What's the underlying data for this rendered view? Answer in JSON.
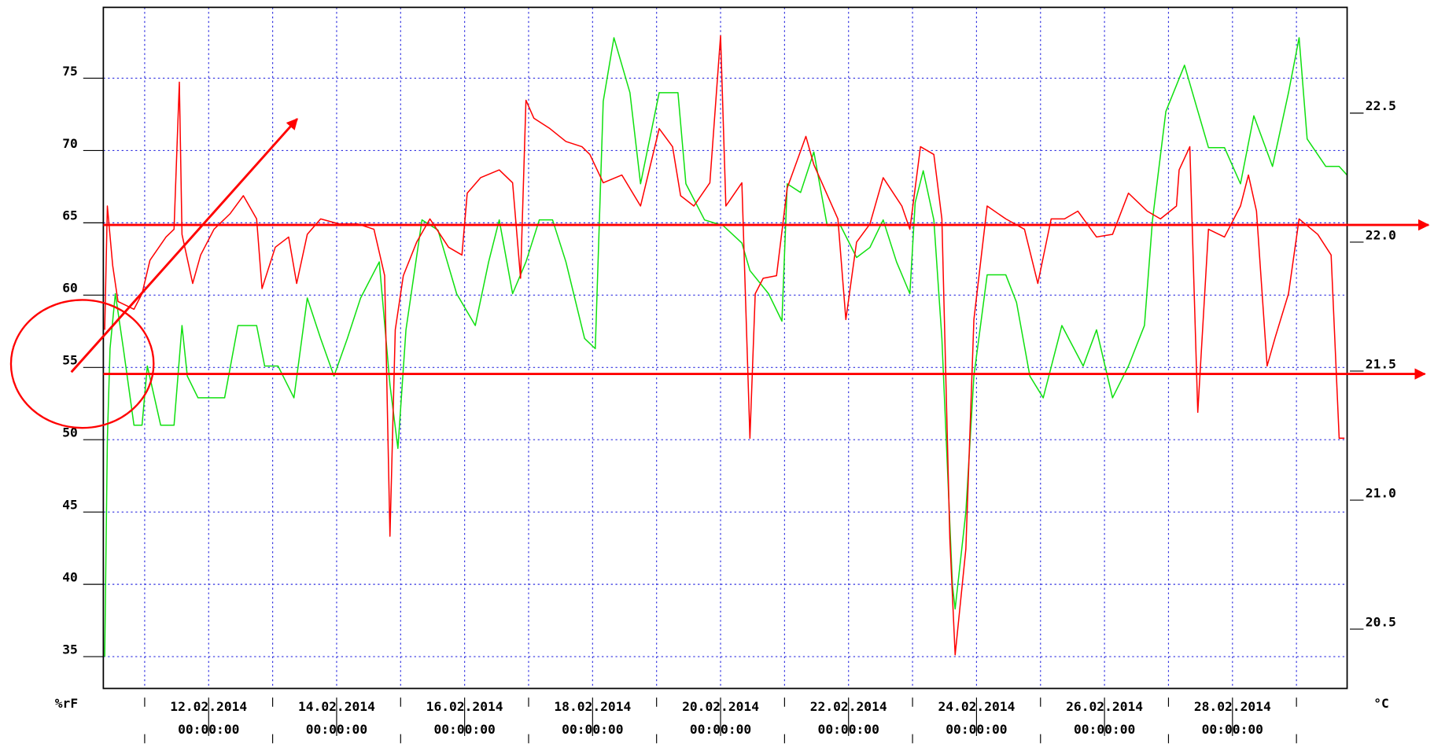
{
  "chart_data": {
    "type": "line",
    "ylabel": "%rF",
    "y2label": "°C",
    "grid": true,
    "xlim": [
      "2014-02-10T08:30",
      "2014-03-01T19:00"
    ],
    "ylim": [
      32.8,
      79.9
    ],
    "yticks": [
      35,
      40,
      45,
      50,
      55,
      60,
      65,
      70,
      75
    ],
    "y2lim": [
      20.27,
      22.91
    ],
    "y2ticks": [
      20.5,
      {
        "value": 21,
        "label": "21.0"
      },
      21.5,
      {
        "value": 22,
        "label": "22.0"
      },
      22.5
    ],
    "xticks": [
      {
        "value": "2014-02-12T00:00",
        "label": "12.02.2014 00:00:00"
      },
      {
        "value": "2014-02-14T00:00",
        "label": "14.02.2014 00:00:00"
      },
      {
        "value": "2014-02-16T00:00",
        "label": "16.02.2014 00:00:00"
      },
      {
        "value": "2014-02-18T00:00",
        "label": "18.02.2014 00:00:00"
      },
      {
        "value": "2014-02-20T00:00",
        "label": "20.02.2014 00:00:00"
      },
      {
        "value": "2014-02-22T00:00",
        "label": "22.02.2014 00:00:00"
      },
      {
        "value": "2014-02-24T00:00",
        "label": "24.02.2014 00:00:00"
      },
      {
        "value": "2014-02-26T00:00",
        "label": "26.02.2014 00:00:00"
      },
      {
        "value": "2014-02-28T00:00",
        "label": "28.02.2014 00:00:00"
      }
    ],
    "xminorticks": [
      "2014-02-11T00:00",
      "2014-02-13T00:00",
      "2014-02-15T00:00",
      "2014-02-17T00:00",
      "2014-02-19T00:00",
      "2014-02-21T00:00",
      "2014-02-23T00:00",
      "2014-02-25T00:00",
      "2014-02-27T00:00",
      "2014-03-01T00:00"
    ],
    "series": [
      {
        "color": "#10e010",
        "axis": "y",
        "x": [
          "2014-02-10T09:00",
          "2014-02-10T10:00",
          "2014-02-10T11:00",
          "2014-02-10T13:00",
          "2014-02-10T16:00",
          "2014-02-10T20:00",
          "2014-02-10T23:00",
          "2014-02-11T01:00",
          "2014-02-11T06:00",
          "2014-02-11T11:00",
          "2014-02-11T14:00",
          "2014-02-11T16:00",
          "2014-02-11T20:00",
          "2014-02-12T06:00",
          "2014-02-12T11:00",
          "2014-02-12T18:00",
          "2014-02-12T21:00",
          "2014-02-13T02:00",
          "2014-02-13T08:00",
          "2014-02-13T13:00",
          "2014-02-13T18:00",
          "2014-02-13T23:00",
          "2014-02-14T04:00",
          "2014-02-14T09:00",
          "2014-02-14T16:00",
          "2014-02-14T20:00",
          "2014-02-14T23:00",
          "2014-02-15T02:00",
          "2014-02-15T08:00",
          "2014-02-15T14:00",
          "2014-02-15T21:00",
          "2014-02-16T04:00",
          "2014-02-16T09:00",
          "2014-02-16T13:00",
          "2014-02-16T18:00",
          "2014-02-16T23:00",
          "2014-02-17T04:00",
          "2014-02-17T09:00",
          "2014-02-17T14:00",
          "2014-02-17T21:00",
          "2014-02-18T01:00",
          "2014-02-18T04:00",
          "2014-02-18T08:00",
          "2014-02-18T14:00",
          "2014-02-18T18:00",
          "2014-02-19T01:00",
          "2014-02-19T08:00",
          "2014-02-19T11:00",
          "2014-02-19T18:00",
          "2014-02-20T01:00",
          "2014-02-20T08:00",
          "2014-02-20T11:00",
          "2014-02-20T18:00",
          "2014-02-20T23:00",
          "2014-02-21T01:00",
          "2014-02-21T06:00",
          "2014-02-21T11:00",
          "2014-02-21T16:00",
          "2014-02-21T21:00",
          "2014-02-22T03:00",
          "2014-02-22T08:00",
          "2014-02-22T13:00",
          "2014-02-22T18:00",
          "2014-02-22T23:00",
          "2014-02-23T01:00",
          "2014-02-23T04:00",
          "2014-02-23T08:00",
          "2014-02-23T11:00",
          "2014-02-23T15:00",
          "2014-02-23T16:00",
          "2014-02-23T20:00",
          "2014-02-23T23:00",
          "2014-02-24T04:00",
          "2014-02-24T11:00",
          "2014-02-24T15:00",
          "2014-02-24T20:00",
          "2014-02-25T01:00",
          "2014-02-25T08:00",
          "2014-02-25T16:00",
          "2014-02-25T21:00",
          "2014-02-26T03:00",
          "2014-02-26T09:00",
          "2014-02-26T15:00",
          "2014-02-26T18:00",
          "2014-02-26T23:00",
          "2014-02-27T06:00",
          "2014-02-27T09:00",
          "2014-02-27T15:00",
          "2014-02-27T21:00",
          "2014-02-28T03:00",
          "2014-02-28T08:00",
          "2014-02-28T15:00",
          "2014-02-28T21:00",
          "2014-03-01T01:00",
          "2014-03-01T04:00",
          "2014-03-01T11:00",
          "2014-03-01T16:00",
          "2014-03-01T19:00"
        ],
        "values": [
          35.0,
          50.0,
          56.3,
          60.1,
          56.3,
          51.0,
          51.0,
          55.1,
          51.0,
          51.0,
          57.9,
          54.4,
          52.9,
          52.9,
          57.9,
          57.9,
          55.1,
          55.1,
          52.9,
          59.8,
          57.0,
          54.4,
          57.0,
          59.8,
          62.3,
          53.8,
          49.4,
          57.6,
          65.2,
          64.5,
          60.1,
          57.9,
          62.3,
          65.2,
          60.1,
          62.3,
          65.2,
          65.2,
          62.3,
          57.0,
          56.3,
          73.4,
          77.8,
          74.0,
          67.7,
          74.0,
          74.0,
          67.7,
          65.2,
          64.8,
          63.6,
          61.7,
          60.1,
          58.2,
          67.7,
          67.1,
          69.9,
          64.8,
          64.8,
          62.6,
          63.3,
          65.2,
          62.3,
          60.1,
          66.4,
          68.6,
          65.2,
          57.0,
          39.9,
          38.3,
          45.0,
          54.4,
          61.4,
          61.4,
          59.5,
          54.4,
          52.9,
          57.9,
          55.1,
          57.6,
          52.9,
          55.1,
          57.9,
          65.2,
          72.7,
          75.9,
          74.0,
          70.2,
          70.2,
          67.7,
          72.4,
          68.9,
          74.0,
          77.8,
          70.8,
          68.9,
          68.9,
          68.3
        ]
      },
      {
        "color": "#ff0000",
        "axis": "y2",
        "x": [
          "2014-02-10T09:00",
          "2014-02-10T10:00",
          "2014-02-10T12:00",
          "2014-02-10T14:00",
          "2014-02-10T20:00",
          "2014-02-10T23:00",
          "2014-02-11T02:00",
          "2014-02-11T08:00",
          "2014-02-11T11:00",
          "2014-02-11T13:00",
          "2014-02-11T14:00",
          "2014-02-11T18:00",
          "2014-02-11T21:00",
          "2014-02-12T02:00",
          "2014-02-12T08:00",
          "2014-02-12T13:00",
          "2014-02-12T18:00",
          "2014-02-12T20:00",
          "2014-02-13T01:00",
          "2014-02-13T06:00",
          "2014-02-13T09:00",
          "2014-02-13T13:00",
          "2014-02-13T18:00",
          "2014-02-14T01:00",
          "2014-02-14T08:00",
          "2014-02-14T14:00",
          "2014-02-14T18:00",
          "2014-02-14T20:00",
          "2014-02-14T22:00",
          "2014-02-15T01:00",
          "2014-02-15T06:00",
          "2014-02-15T11:00",
          "2014-02-15T18:00",
          "2014-02-15T23:00",
          "2014-02-16T01:00",
          "2014-02-16T06:00",
          "2014-02-16T13:00",
          "2014-02-16T18:00",
          "2014-02-16T21:00",
          "2014-02-16T23:00",
          "2014-02-17T02:00",
          "2014-02-17T08:00",
          "2014-02-17T14:00",
          "2014-02-17T20:00",
          "2014-02-17T23:00",
          "2014-02-18T04:00",
          "2014-02-18T11:00",
          "2014-02-18T18:00",
          "2014-02-19T01:00",
          "2014-02-19T06:00",
          "2014-02-19T09:00",
          "2014-02-19T14:00",
          "2014-02-19T20:00",
          "2014-02-20T00:00",
          "2014-02-20T02:00",
          "2014-02-20T08:00",
          "2014-02-20T11:00",
          "2014-02-20T13:00",
          "2014-02-20T16:00",
          "2014-02-20T21:00",
          "2014-02-21T01:00",
          "2014-02-21T08:00",
          "2014-02-21T11:00",
          "2014-02-21T14:00",
          "2014-02-21T20:00",
          "2014-02-21T23:00",
          "2014-02-22T03:00",
          "2014-02-22T08:00",
          "2014-02-22T13:00",
          "2014-02-22T20:00",
          "2014-02-22T23:00",
          "2014-02-23T03:00",
          "2014-02-23T08:00",
          "2014-02-23T11:00",
          "2014-02-23T14:00",
          "2014-02-23T16:00",
          "2014-02-23T20:00",
          "2014-02-23T23:00",
          "2014-02-24T04:00",
          "2014-02-24T11:00",
          "2014-02-24T18:00",
          "2014-02-24T23:00",
          "2014-02-25T04:00",
          "2014-02-25T09:00",
          "2014-02-25T14:00",
          "2014-02-25T21:00",
          "2014-02-26T03:00",
          "2014-02-26T09:00",
          "2014-02-26T16:00",
          "2014-02-26T21:00",
          "2014-02-27T03:00",
          "2014-02-27T04:00",
          "2014-02-27T08:00",
          "2014-02-27T11:00",
          "2014-02-27T15:00",
          "2014-02-27T21:00",
          "2014-02-28T03:00",
          "2014-02-28T06:00",
          "2014-02-28T09:00",
          "2014-02-28T13:00",
          "2014-02-28T16:00",
          "2014-02-28T21:00",
          "2014-03-01T01:00",
          "2014-03-01T08:00",
          "2014-03-01T13:00",
          "2014-03-01T16:00",
          "2014-03-01T18:00"
        ],
        "values": [
          21.66,
          22.14,
          21.91,
          21.77,
          21.74,
          21.8,
          21.93,
          22.02,
          22.05,
          22.62,
          22.03,
          21.84,
          21.95,
          22.05,
          22.11,
          22.18,
          22.09,
          21.82,
          21.98,
          22.02,
          21.84,
          22.03,
          22.09,
          22.07,
          22.07,
          22.05,
          21.87,
          20.86,
          21.66,
          21.87,
          22.0,
          22.09,
          21.98,
          21.95,
          22.19,
          22.25,
          22.28,
          22.23,
          21.86,
          22.55,
          22.48,
          22.44,
          22.39,
          22.37,
          22.34,
          22.23,
          22.26,
          22.14,
          22.44,
          22.37,
          22.18,
          22.14,
          22.23,
          22.8,
          22.14,
          22.23,
          21.24,
          21.8,
          21.86,
          21.87,
          22.21,
          22.41,
          22.3,
          22.23,
          22.09,
          21.7,
          22.0,
          22.07,
          22.25,
          22.14,
          22.05,
          22.37,
          22.34,
          22.09,
          20.85,
          20.4,
          20.81,
          21.7,
          22.14,
          22.09,
          22.05,
          21.84,
          22.09,
          22.09,
          22.12,
          22.02,
          22.03,
          22.19,
          22.12,
          22.09,
          22.14,
          22.28,
          22.37,
          21.34,
          22.05,
          22.02,
          22.14,
          22.26,
          22.12,
          21.52,
          21.63,
          21.8,
          22.09,
          22.03,
          21.95,
          21.24,
          21.24
        ]
      }
    ]
  }
}
